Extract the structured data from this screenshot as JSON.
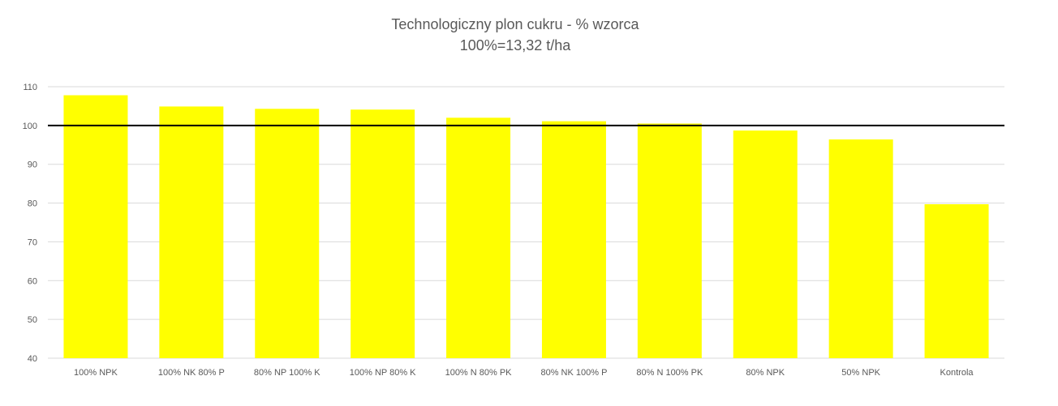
{
  "chart_data": {
    "type": "bar",
    "title": "Technologiczny plon cukru - % wzorca",
    "subtitle": "100%=13,32 t/ha",
    "categories": [
      "100% NPK",
      "100% NK 80% P",
      "80% NP 100% K",
      "100% NP 80% K",
      "100% N 80% PK",
      "80% NK 100% P",
      "80% N 100% PK",
      "80% NPK",
      "50% NPK",
      "Kontrola"
    ],
    "values": [
      107.8,
      104.9,
      104.3,
      104.1,
      102.0,
      101.1,
      100.5,
      98.7,
      96.4,
      79.7
    ],
    "ylim": [
      40,
      110
    ],
    "yticks": [
      40,
      50,
      60,
      70,
      80,
      90,
      100,
      110
    ],
    "reference_line": 100,
    "grid": true,
    "bar_color": "#FFFF00",
    "reference_line_color": "#000000",
    "grid_color": "#D9D9D9",
    "text_color": "#595959"
  }
}
